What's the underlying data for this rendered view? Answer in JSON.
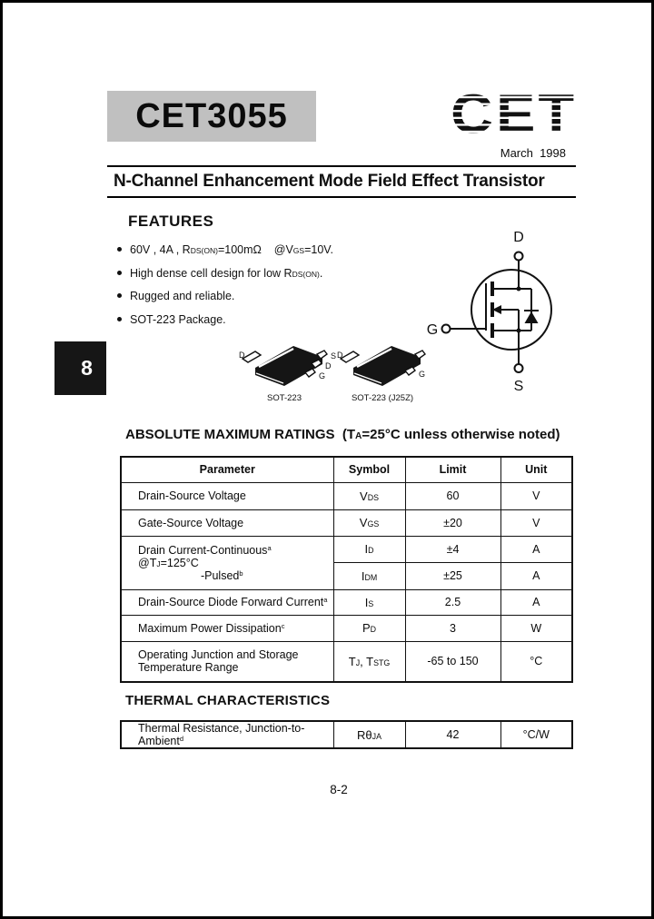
{
  "header": {
    "part_number": "CET3055",
    "logo_text": "CET",
    "date": "March  1998",
    "doc_title": "N-Channel Enhancement Mode Field Effect Transistor"
  },
  "side_tab": {
    "number": "8"
  },
  "features": {
    "heading": "FEATURES",
    "items": [
      [
        {
          "t": "60V , 4A , R"
        },
        {
          "t": "DS(ON)",
          "s": "sub"
        },
        {
          "t": "=100mΩ    @V"
        },
        {
          "t": "GS",
          "s": "sub"
        },
        {
          "t": "=10V."
        }
      ],
      [
        {
          "t": "High dense cell design for low R"
        },
        {
          "t": "DS(ON)",
          "s": "sub"
        },
        {
          "t": "."
        }
      ],
      [
        {
          "t": "Rugged and reliable."
        }
      ],
      [
        {
          "t": "SOT-223 Package."
        }
      ]
    ]
  },
  "mosfet_symbol": {
    "drain": "D",
    "gate": "G",
    "source": "S"
  },
  "packages": {
    "left": {
      "caption": "SOT-223",
      "tab_label": "D",
      "pin_labels": [
        "S",
        "D",
        "G"
      ]
    },
    "right": {
      "caption": "SOT-223 (J25Z)",
      "tab_label": "D",
      "pin_labels": [
        "S",
        "G"
      ]
    }
  },
  "amr": {
    "heading": [
      {
        "t": "ABSOLUTE MAXIMUM RATINGS  (T"
      },
      {
        "t": "A",
        "s": "sub"
      },
      {
        "t": "=25°C unless otherwise noted)"
      }
    ],
    "columns": [
      "Parameter",
      "Symbol",
      "Limit",
      "Unit"
    ],
    "rows": {
      "vds": {
        "param": [
          {
            "t": "Drain-Source Voltage"
          }
        ],
        "symbol": [
          {
            "t": "V"
          },
          {
            "t": "DS",
            "s": "sub"
          }
        ],
        "limit": "60",
        "unit": "V"
      },
      "vgs": {
        "param": [
          {
            "t": "Gate-Source Voltage"
          }
        ],
        "symbol": [
          {
            "t": "V"
          },
          {
            "t": "GS",
            "s": "sub"
          }
        ],
        "limit": "±20",
        "unit": "V"
      },
      "id": {
        "param_line1": [
          {
            "t": "Drain Current-Continuous"
          },
          {
            "t": "a",
            "s": "sup"
          },
          {
            "t": "  @T"
          },
          {
            "t": "J",
            "s": "sub"
          },
          {
            "t": "=125°C"
          }
        ],
        "param_line2": [
          {
            "t": "-Pulsed"
          },
          {
            "t": "b",
            "s": "sup"
          }
        ],
        "symbol": [
          {
            "t": "I"
          },
          {
            "t": "D",
            "s": "sub"
          }
        ],
        "limit": "±4",
        "unit": "A"
      },
      "idm": {
        "symbol": [
          {
            "t": "I"
          },
          {
            "t": "DM",
            "s": "sub"
          }
        ],
        "limit": "±25",
        "unit": "A"
      },
      "is": {
        "param": [
          {
            "t": "Drain-Source Diode Forward Current"
          },
          {
            "t": "a",
            "s": "sup"
          }
        ],
        "symbol": [
          {
            "t": "I"
          },
          {
            "t": "S",
            "s": "sub"
          }
        ],
        "limit": "2.5",
        "unit": "A"
      },
      "pd": {
        "param": [
          {
            "t": "Maximum Power Dissipation"
          },
          {
            "t": "c",
            "s": "sup"
          }
        ],
        "symbol": [
          {
            "t": "P"
          },
          {
            "t": "D",
            "s": "sub"
          }
        ],
        "limit": "3",
        "unit": "W"
      },
      "tj": {
        "param_line1": [
          {
            "t": "Operating Junction and Storage"
          }
        ],
        "param_line2": [
          {
            "t": "Temperature Range"
          }
        ],
        "symbol": [
          {
            "t": "T"
          },
          {
            "t": "J",
            "s": "sub"
          },
          {
            "t": ", T"
          },
          {
            "t": "STG",
            "s": "sub"
          }
        ],
        "limit": "-65 to 150",
        "unit": "°C"
      }
    }
  },
  "thermal": {
    "heading": "THERMAL CHARACTERISTICS",
    "row": {
      "param": [
        {
          "t": "Thermal Resistance, Junction-to-Ambient"
        },
        {
          "t": "d",
          "s": "sup"
        }
      ],
      "symbol": [
        {
          "t": "R"
        },
        {
          "t": "θ"
        },
        {
          "t": "JA",
          "s": "sub"
        }
      ],
      "limit": "42",
      "unit": "°C/W"
    }
  },
  "footer": {
    "page_number": "8-2"
  },
  "colors": {
    "ink": "#111111",
    "part_box_bg": "#c0c0c0"
  }
}
